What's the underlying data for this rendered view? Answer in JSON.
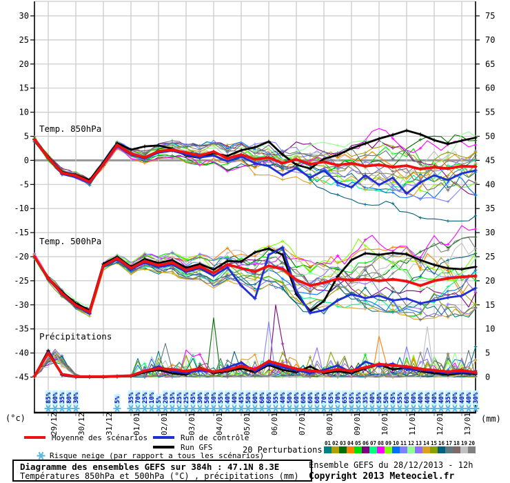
{
  "legend": {
    "mean_label": "Moyenne des scénarios",
    "control_label": "Run de contrôle",
    "gfs_label": "Run GFS",
    "snow_label": "Risque neige (par rapport a tous les scénarios)",
    "perturbations_label": "20 Perturbations",
    "perturbation_ids": [
      "01",
      "02",
      "03",
      "04",
      "05",
      "06",
      "07",
      "08",
      "09",
      "10",
      "11",
      "12",
      "13",
      "14",
      "15",
      "16",
      "17",
      "18",
      "19",
      "20"
    ],
    "perturbation_colors": [
      "#008080",
      "#b0a000",
      "#007000",
      "#ff8000",
      "#00e000",
      "#800080",
      "#00ff80",
      "#ff00ff",
      "#80ff00",
      "#0070ff",
      "#8080ff",
      "#90ff90",
      "#9070ff",
      "#dca020",
      "#88a000",
      "#006080",
      "#607880",
      "#806868",
      "#c0c0c0",
      "#808080"
    ]
  },
  "footer": {
    "title_line1": "Diagramme des ensembles GEFS sur 384h : 47.1N 8.3E",
    "title_line2": "Températures 850hPa et 500hPa (°C) , précipitations (mm)",
    "run_info": "Ensemble GEFS du 28/12/2013 - 12h",
    "copyright": "Copyright 2013 Meteociel.fr"
  },
  "chart_data": {
    "type": "line",
    "x_total_hours": 384,
    "x_step_hours_series": 12,
    "x_labels": [
      "29/12",
      "30/12",
      "31/12",
      "01/01",
      "02/01",
      "03/01",
      "04/01",
      "05/01",
      "06/01",
      "07/01",
      "08/01",
      "09/01",
      "10/01",
      "11/01",
      "12/01",
      "13/01"
    ],
    "left_axis": {
      "unit": "(°c)",
      "min": -45,
      "max": 30,
      "step": 5,
      "ticks": [
        30,
        25,
        20,
        15,
        10,
        5,
        0,
        -5,
        -10,
        -15,
        -20,
        -25,
        -30,
        -35,
        -40,
        -45
      ]
    },
    "right_axis": {
      "unit": "(mm)",
      "min": 0,
      "max": 75,
      "step": 5,
      "ticks": [
        75,
        70,
        65,
        60,
        55,
        50,
        45,
        40,
        35,
        30,
        25,
        20,
        15,
        10,
        5,
        0
      ]
    },
    "panels": [
      {
        "id": "t850",
        "label": "Temp. 850hPa"
      },
      {
        "id": "t500",
        "label": "Temp. 500hPa"
      },
      {
        "id": "precip",
        "label": "Précipitations"
      }
    ],
    "colors": {
      "mean": "#ee1111",
      "control": "#1f2fd4",
      "gfs": "#000000",
      "grid": "#c9c9c9",
      "zero_line": "#979797",
      "axis": "#000000",
      "snowflake": "#5cb8e4",
      "snow_pct_text": "#0000cc",
      "snow_pct_bg": "#c6f3ff"
    },
    "series": {
      "t850": {
        "mean": [
          4.3,
          0.5,
          -2.6,
          -3.2,
          -4.5,
          -0.8,
          3.2,
          1.4,
          0.6,
          1.9,
          2.2,
          1.6,
          1.0,
          1.8,
          0.4,
          1.2,
          0.2,
          0.6,
          -0.6,
          0.2,
          -0.8,
          -0.3,
          -1.0,
          -0.6,
          -1.2,
          -0.9,
          -1.4,
          -1.1,
          -1.8,
          -1.4,
          -1.7,
          -1.2,
          -1.3
        ],
        "control": [
          4.3,
          0.4,
          -2.8,
          -3.5,
          -4.7,
          -1.0,
          3.0,
          1.2,
          0.4,
          1.6,
          2.0,
          1.2,
          0.6,
          1.0,
          -0.2,
          0.8,
          -0.6,
          -1.2,
          -3.1,
          -1.6,
          -3.6,
          -2.1,
          -4.6,
          -5.6,
          -3.1,
          -5.1,
          -3.6,
          -6.9,
          -4.6,
          -3.1,
          -4.1,
          -2.7,
          -2.1
        ],
        "gfs": [
          4.4,
          0.7,
          -2.4,
          -3.0,
          -4.1,
          -0.4,
          3.6,
          2.2,
          2.9,
          3.1,
          2.4,
          1.0,
          0.5,
          1.5,
          0.9,
          2.1,
          2.7,
          3.9,
          1.2,
          -0.9,
          -1.7,
          0.3,
          1.1,
          2.5,
          3.5,
          4.5,
          5.3,
          6.2,
          5.4,
          4.2,
          3.4,
          4.1,
          4.7
        ]
      },
      "t500": {
        "mean": [
          -20.0,
          -24.5,
          -27.6,
          -30.1,
          -31.5,
          -21.9,
          -20.3,
          -22.4,
          -20.9,
          -21.8,
          -21.2,
          -22.8,
          -22.0,
          -23.4,
          -21.6,
          -22.4,
          -23.1,
          -21.9,
          -22.5,
          -24.8,
          -26.0,
          -25.4,
          -24.6,
          -24.9,
          -24.7,
          -25.0,
          -24.7,
          -25.1,
          -26.0,
          -25.0,
          -24.5,
          -24.2,
          -24.0
        ],
        "control": [
          -20.0,
          -24.7,
          -27.8,
          -30.3,
          -31.8,
          -22.1,
          -20.5,
          -22.7,
          -21.2,
          -22.2,
          -21.6,
          -23.2,
          -22.4,
          -24.0,
          -22.2,
          -26.0,
          -28.7,
          -19.6,
          -18.1,
          -27.1,
          -31.7,
          -31.1,
          -29.1,
          -27.8,
          -28.6,
          -28.1,
          -29.1,
          -28.7,
          -29.7,
          -29.1,
          -28.5,
          -28.1,
          -26.5
        ],
        "gfs": [
          -20.0,
          -24.4,
          -27.3,
          -29.7,
          -31.1,
          -21.5,
          -20.0,
          -22.1,
          -20.5,
          -21.3,
          -20.7,
          -22.3,
          -21.5,
          -22.7,
          -20.9,
          -21.0,
          -19.1,
          -18.3,
          -19.6,
          -27.8,
          -31.3,
          -29.2,
          -24.1,
          -20.7,
          -19.3,
          -19.6,
          -19.2,
          -19.5,
          -20.7,
          -21.7,
          -22.4,
          -22.6,
          -22.1
        ]
      },
      "precip_mm": {
        "mean": [
          0.2,
          5.0,
          0.6,
          0.1,
          0.1,
          0.1,
          0.2,
          0.3,
          1.3,
          1.8,
          1.6,
          1.2,
          1.8,
          1.1,
          1.5,
          2.3,
          1.6,
          3.3,
          2.5,
          1.7,
          1.3,
          1.1,
          1.6,
          1.3,
          2.0,
          2.7,
          2.4,
          2.2,
          1.7,
          1.4,
          1.1,
          1.4,
          1.0
        ],
        "control": [
          0.2,
          5.2,
          0.5,
          0.0,
          0.0,
          0.1,
          0.1,
          0.3,
          1.2,
          2.2,
          1.2,
          0.8,
          1.4,
          1.0,
          2.0,
          3.0,
          1.2,
          2.8,
          2.0,
          1.4,
          0.8,
          1.5,
          2.4,
          1.0,
          3.2,
          2.2,
          2.8,
          1.6,
          1.4,
          1.2,
          0.8,
          1.0,
          0.8
        ],
        "gfs": [
          0.2,
          5.5,
          0.4,
          0.0,
          0.0,
          0.0,
          0.1,
          0.2,
          1.0,
          1.5,
          0.8,
          0.5,
          2.0,
          0.8,
          1.2,
          1.8,
          1.0,
          2.5,
          1.5,
          1.0,
          2.2,
          0.8,
          1.2,
          0.8,
          1.8,
          2.6,
          1.6,
          1.9,
          1.2,
          0.8,
          0.5,
          0.8,
          0.6
        ]
      }
    },
    "snow_risk": {
      "hours": [
        12,
        18,
        24,
        30,
        36,
        72,
        84,
        90,
        96,
        102,
        108,
        114,
        120,
        126,
        132,
        138,
        144,
        150,
        156,
        162,
        168,
        174,
        180,
        186,
        192,
        198,
        204,
        210,
        216,
        222,
        228,
        234,
        240,
        246,
        252,
        258,
        264,
        270,
        276,
        282,
        288,
        294,
        300,
        306,
        312,
        318,
        324,
        330,
        336,
        342,
        348,
        354,
        360,
        366,
        372,
        378,
        384
      ],
      "pct": [
        85,
        60,
        35,
        80,
        30,
        5,
        35,
        70,
        25,
        10,
        5,
        20,
        15,
        25,
        25,
        45,
        30,
        50,
        50,
        55,
        40,
        40,
        45,
        50,
        60,
        60,
        60,
        55,
        40,
        50,
        60,
        60,
        60,
        60,
        70,
        65,
        70,
        65,
        65,
        55,
        35,
        40,
        50,
        50,
        45,
        55,
        60,
        60,
        40,
        40,
        40,
        40,
        35,
        40,
        40,
        40,
        30
      ]
    },
    "ensemble": {
      "count": 20,
      "seed": 11,
      "spread": {
        "t850": [
          0.5,
          5.5
        ],
        "t500": [
          0.7,
          6.5
        ]
      },
      "bias": {
        "t850": {
          "4": 5.2,
          "7": 3.2,
          "9": -7.8,
          "15": -4.6,
          "16": -3.5
        },
        "t500": {
          "4": 5.5,
          "7": 11.0,
          "8": 7.5,
          "9": -4.5,
          "15": -4.0
        }
      },
      "precip_spikes": [
        [
          2,
          156,
          12.3
        ],
        [
          5,
          210,
          15.0
        ],
        [
          10,
          204,
          11.5
        ],
        [
          3,
          300,
          8.5
        ],
        [
          18,
          342,
          10.5
        ],
        [
          16,
          114,
          7.0
        ]
      ]
    }
  }
}
